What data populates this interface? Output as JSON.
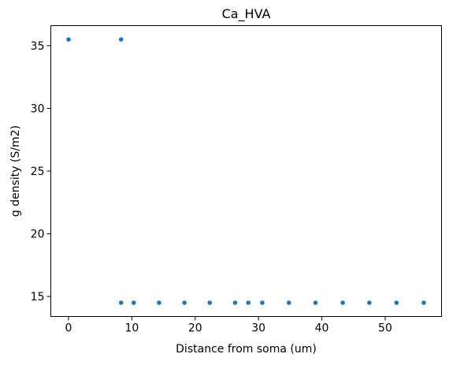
{
  "chart_data": {
    "type": "scatter",
    "title": "Ca_HVA",
    "xlabel": "Distance from soma (um)",
    "ylabel": "g density (S/m2)",
    "xlim": [
      -2.8,
      58.9
    ],
    "ylim": [
      13.4,
      36.6
    ],
    "xticks": [
      0,
      10,
      20,
      30,
      40,
      50
    ],
    "yticks": [
      15,
      20,
      25,
      30,
      35
    ],
    "grid": false,
    "color": "#1f77b4",
    "points": [
      {
        "x": 0,
        "y": 35.5
      },
      {
        "x": 8.3,
        "y": 35.5
      },
      {
        "x": 8.3,
        "y": 14.5
      },
      {
        "x": 10.3,
        "y": 14.5
      },
      {
        "x": 14.3,
        "y": 14.5
      },
      {
        "x": 18.3,
        "y": 14.5
      },
      {
        "x": 22.3,
        "y": 14.5
      },
      {
        "x": 26.3,
        "y": 14.5
      },
      {
        "x": 28.4,
        "y": 14.5
      },
      {
        "x": 30.6,
        "y": 14.5
      },
      {
        "x": 34.8,
        "y": 14.5
      },
      {
        "x": 39,
        "y": 14.5
      },
      {
        "x": 43.3,
        "y": 14.5
      },
      {
        "x": 47.5,
        "y": 14.5
      },
      {
        "x": 51.8,
        "y": 14.5
      },
      {
        "x": 56.1,
        "y": 14.5
      }
    ]
  }
}
